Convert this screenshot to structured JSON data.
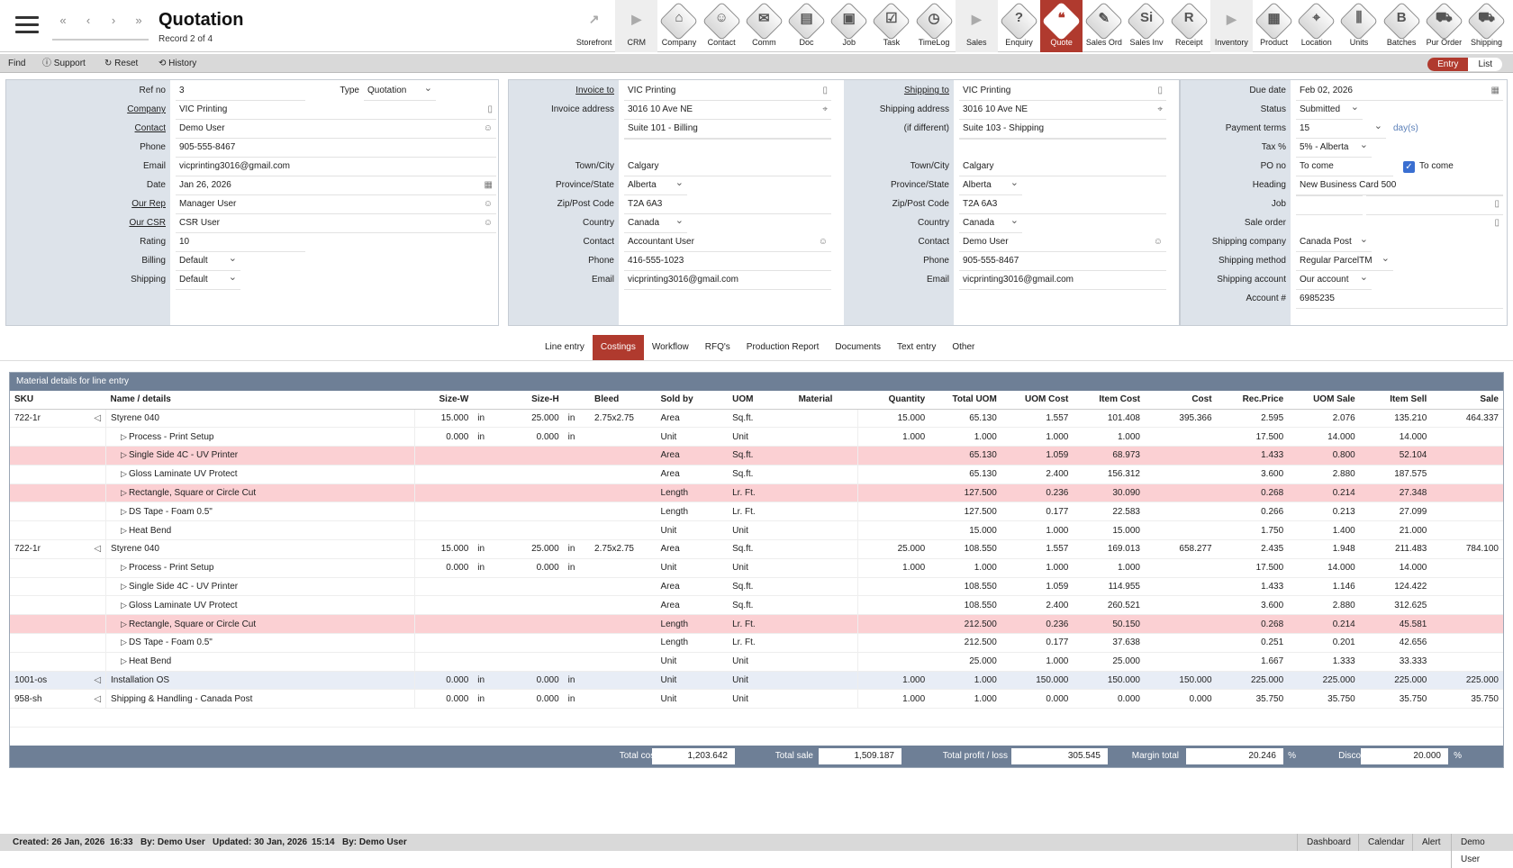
{
  "header": {
    "title": "Quotation",
    "record": "Record 2 of 4",
    "nav": [
      "«",
      "‹",
      "›",
      "»"
    ]
  },
  "modules": [
    {
      "label": "Storefront",
      "glyph": "↗",
      "kind": "plain"
    },
    {
      "label": "CRM",
      "glyph": "▶",
      "kind": "sep"
    },
    {
      "label": "Company",
      "glyph": "⌂",
      "kind": "icon"
    },
    {
      "label": "Contact",
      "glyph": "☺",
      "kind": "icon"
    },
    {
      "label": "Comm",
      "glyph": "✉",
      "kind": "icon"
    },
    {
      "label": "Doc",
      "glyph": "▤",
      "kind": "icon"
    },
    {
      "label": "Job",
      "glyph": "▣",
      "kind": "icon"
    },
    {
      "label": "Task",
      "glyph": "☑",
      "kind": "icon"
    },
    {
      "label": "TimeLog",
      "glyph": "◷",
      "kind": "icon"
    },
    {
      "label": "Sales",
      "glyph": "▶",
      "kind": "sep"
    },
    {
      "label": "Enquiry",
      "glyph": "?",
      "kind": "icon"
    },
    {
      "label": "Quote",
      "glyph": "❝",
      "kind": "active"
    },
    {
      "label": "Sales Ord",
      "glyph": "✎",
      "kind": "icon"
    },
    {
      "label": "Sales Inv",
      "glyph": "Si",
      "kind": "icon"
    },
    {
      "label": "Receipt",
      "glyph": "R",
      "kind": "icon"
    },
    {
      "label": "Inventory",
      "glyph": "▶",
      "kind": "sep"
    },
    {
      "label": "Product",
      "glyph": "▦",
      "kind": "icon"
    },
    {
      "label": "Location",
      "glyph": "⌖",
      "kind": "icon"
    },
    {
      "label": "Units",
      "glyph": "⫼",
      "kind": "icon"
    },
    {
      "label": "Batches",
      "glyph": "B",
      "kind": "icon"
    },
    {
      "label": "Pur Order",
      "glyph": "⛟",
      "kind": "icon"
    },
    {
      "label": "Shipping",
      "glyph": "⛟",
      "kind": "icon"
    }
  ],
  "toolbar": {
    "find": "Find",
    "support": "Support",
    "reset": "Reset",
    "history": "History",
    "entry": "Entry",
    "list": "List"
  },
  "panel1": {
    "ref_no_label": "Ref no",
    "ref_no": "3",
    "type_label": "Type",
    "type": "Quotation",
    "company_label": "Company",
    "company": "VIC Printing",
    "contact_label": "Contact",
    "contact": "Demo User",
    "phone_label": "Phone",
    "phone": "905-555-8467",
    "email_label": "Email",
    "email": "vicprinting3016@gmail.com",
    "date_label": "Date",
    "date": "Jan 26, 2026",
    "rep_label": "Our Rep",
    "rep": "Manager User",
    "csr_label": "Our CSR",
    "csr": "CSR User",
    "rating_label": "Rating",
    "rating": "10",
    "billing_label": "Billing",
    "billing": "Default",
    "shipping_label": "Shipping",
    "shipping": "Default"
  },
  "panel2": {
    "invoice_to_label": "Invoice to",
    "invoice_to": "VIC Printing",
    "addr_label": "Invoice address",
    "addr1": "3016 10 Ave NE",
    "addr2": "Suite 101 - Billing",
    "town_label": "Town/City",
    "town": "Calgary",
    "prov_label": "Province/State",
    "prov": "Alberta",
    "zip_label": "Zip/Post Code",
    "zip": "T2A 6A3",
    "country_label": "Country",
    "country": "Canada",
    "contact_label": "Contact",
    "contact": "Accountant User",
    "phone_label": "Phone",
    "phone": "416-555-1023",
    "email_label": "Email",
    "email": "vicprinting3016@gmail.com",
    "ship_to_label": "Shipping to",
    "ship_to": "VIC Printing",
    "saddr_label": "Shipping address",
    "saddr_label2": "(if different)",
    "saddr1": "3016 10 Ave NE",
    "saddr2": "Suite 103 - Shipping",
    "stown": "Calgary",
    "sprov": "Alberta",
    "szip": "T2A 6A3",
    "scountry": "Canada",
    "scontact": "Demo User",
    "sphone": "905-555-8467",
    "semail": "vicprinting3016@gmail.com"
  },
  "panel3": {
    "due_label": "Due date",
    "due": "Feb 02, 2026",
    "status_label": "Status",
    "status": "Submitted",
    "terms_label": "Payment terms",
    "terms": "15",
    "terms_unit": "day(s)",
    "tax_label": "Tax %",
    "tax": "5% - Alberta",
    "po_label": "PO no",
    "po": "To come",
    "po_check": "To come",
    "heading_label": "Heading",
    "heading": "New Business Card 500",
    "job_label": "Job",
    "job": "",
    "so_label": "Sale order",
    "so": "",
    "shipco_label": "Shipping company",
    "shipco": "Canada Post",
    "shipmethod_label": "Shipping method",
    "shipmethod": "Regular ParcelTM",
    "shipacct_label": "Shipping account",
    "shipacct": "Our account",
    "acct_label": "Account #",
    "acct": "6985235"
  },
  "tabs": [
    "Line entry",
    "Costings",
    "Workflow",
    "RFQ's",
    "Production Report",
    "Documents",
    "Text entry",
    "Other"
  ],
  "grid": {
    "title": "Material details for line entry",
    "columns": [
      "SKU",
      "Name / details",
      "Size-W",
      "",
      "Size-H",
      "",
      "Bleed",
      "Sold by",
      "UOM",
      "Material",
      "Quantity",
      "Total UOM",
      "UOM Cost",
      "Item Cost",
      "Cost",
      "Rec.Price",
      "UOM Sale",
      "Item Sell",
      "Sale"
    ],
    "rows": [
      {
        "style": "main",
        "sku": "722-1r",
        "name": "Styrene 040",
        "w": "15.000",
        "wu": "in",
        "h": "25.000",
        "hu": "in",
        "bleed": "2.75x2.75",
        "sold": "Area",
        "uom": "Sq.ft.",
        "mat": "",
        "qty": "15.000",
        "tuom": "65.130",
        "ucost": "1.557",
        "icost": "101.408",
        "cost": "395.366",
        "rec": "2.595",
        "usale": "2.076",
        "isell": "135.210",
        "sale": "464.337"
      },
      {
        "style": "sub",
        "sku": "",
        "name": "Process - Print Setup",
        "w": "0.000",
        "wu": "in",
        "h": "0.000",
        "hu": "in",
        "bleed": "",
        "sold": "Unit",
        "uom": "Unit",
        "mat": "",
        "qty": "1.000",
        "tuom": "1.000",
        "ucost": "1.000",
        "icost": "1.000",
        "cost": "",
        "rec": "17.500",
        "usale": "14.000",
        "isell": "14.000",
        "sale": ""
      },
      {
        "style": "pink",
        "sku": "",
        "name": "Single Side 4C - UV Printer",
        "w": "",
        "wu": "",
        "h": "",
        "hu": "",
        "bleed": "",
        "sold": "Area",
        "uom": "Sq.ft.",
        "mat": "",
        "qty": "",
        "tuom": "65.130",
        "ucost": "1.059",
        "icost": "68.973",
        "cost": "",
        "rec": "1.433",
        "usale": "0.800",
        "isell": "52.104",
        "sale": ""
      },
      {
        "style": "sub",
        "sku": "",
        "name": "Gloss Laminate UV Protect",
        "w": "",
        "wu": "",
        "h": "",
        "hu": "",
        "bleed": "",
        "sold": "Area",
        "uom": "Sq.ft.",
        "mat": "",
        "qty": "",
        "tuom": "65.130",
        "ucost": "2.400",
        "icost": "156.312",
        "cost": "",
        "rec": "3.600",
        "usale": "2.880",
        "isell": "187.575",
        "sale": ""
      },
      {
        "style": "pink",
        "sku": "",
        "name": "Rectangle, Square or Circle Cut",
        "w": "",
        "wu": "",
        "h": "",
        "hu": "",
        "bleed": "",
        "sold": "Length",
        "uom": "Lr. Ft.",
        "mat": "",
        "qty": "",
        "tuom": "127.500",
        "ucost": "0.236",
        "icost": "30.090",
        "cost": "",
        "rec": "0.268",
        "usale": "0.214",
        "isell": "27.348",
        "sale": ""
      },
      {
        "style": "sub",
        "sku": "",
        "name": "DS Tape - Foam 0.5\"",
        "w": "",
        "wu": "",
        "h": "",
        "hu": "",
        "bleed": "",
        "sold": "Length",
        "uom": "Lr. Ft.",
        "mat": "",
        "qty": "",
        "tuom": "127.500",
        "ucost": "0.177",
        "icost": "22.583",
        "cost": "",
        "rec": "0.266",
        "usale": "0.213",
        "isell": "27.099",
        "sale": ""
      },
      {
        "style": "sub",
        "sku": "",
        "name": "Heat Bend",
        "w": "",
        "wu": "",
        "h": "",
        "hu": "",
        "bleed": "",
        "sold": "Unit",
        "uom": "Unit",
        "mat": "",
        "qty": "",
        "tuom": "15.000",
        "ucost": "1.000",
        "icost": "15.000",
        "cost": "",
        "rec": "1.750",
        "usale": "1.400",
        "isell": "21.000",
        "sale": ""
      },
      {
        "style": "main",
        "sku": "722-1r",
        "name": "Styrene 040",
        "w": "15.000",
        "wu": "in",
        "h": "25.000",
        "hu": "in",
        "bleed": "2.75x2.75",
        "sold": "Area",
        "uom": "Sq.ft.",
        "mat": "",
        "qty": "25.000",
        "tuom": "108.550",
        "ucost": "1.557",
        "icost": "169.013",
        "cost": "658.277",
        "rec": "2.435",
        "usale": "1.948",
        "isell": "211.483",
        "sale": "784.100"
      },
      {
        "style": "sub",
        "sku": "",
        "name": "Process - Print Setup",
        "w": "0.000",
        "wu": "in",
        "h": "0.000",
        "hu": "in",
        "bleed": "",
        "sold": "Unit",
        "uom": "Unit",
        "mat": "",
        "qty": "1.000",
        "tuom": "1.000",
        "ucost": "1.000",
        "icost": "1.000",
        "cost": "",
        "rec": "17.500",
        "usale": "14.000",
        "isell": "14.000",
        "sale": ""
      },
      {
        "style": "sub",
        "sku": "",
        "name": "Single Side 4C - UV Printer",
        "w": "",
        "wu": "",
        "h": "",
        "hu": "",
        "bleed": "",
        "sold": "Area",
        "uom": "Sq.ft.",
        "mat": "",
        "qty": "",
        "tuom": "108.550",
        "ucost": "1.059",
        "icost": "114.955",
        "cost": "",
        "rec": "1.433",
        "usale": "1.146",
        "isell": "124.422",
        "sale": ""
      },
      {
        "style": "sub",
        "sku": "",
        "name": "Gloss Laminate UV Protect",
        "w": "",
        "wu": "",
        "h": "",
        "hu": "",
        "bleed": "",
        "sold": "Area",
        "uom": "Sq.ft.",
        "mat": "",
        "qty": "",
        "tuom": "108.550",
        "ucost": "2.400",
        "icost": "260.521",
        "cost": "",
        "rec": "3.600",
        "usale": "2.880",
        "isell": "312.625",
        "sale": ""
      },
      {
        "style": "pink",
        "sku": "",
        "name": "Rectangle, Square or Circle Cut",
        "w": "",
        "wu": "",
        "h": "",
        "hu": "",
        "bleed": "",
        "sold": "Length",
        "uom": "Lr. Ft.",
        "mat": "",
        "qty": "",
        "tuom": "212.500",
        "ucost": "0.236",
        "icost": "50.150",
        "cost": "",
        "rec": "0.268",
        "usale": "0.214",
        "isell": "45.581",
        "sale": ""
      },
      {
        "style": "sub",
        "sku": "",
        "name": "DS Tape - Foam 0.5\"",
        "w": "",
        "wu": "",
        "h": "",
        "hu": "",
        "bleed": "",
        "sold": "Length",
        "uom": "Lr. Ft.",
        "mat": "",
        "qty": "",
        "tuom": "212.500",
        "ucost": "0.177",
        "icost": "37.638",
        "cost": "",
        "rec": "0.251",
        "usale": "0.201",
        "isell": "42.656",
        "sale": ""
      },
      {
        "style": "sub",
        "sku": "",
        "name": "Heat Bend",
        "w": "",
        "wu": "",
        "h": "",
        "hu": "",
        "bleed": "",
        "sold": "Unit",
        "uom": "Unit",
        "mat": "",
        "qty": "",
        "tuom": "25.000",
        "ucost": "1.000",
        "icost": "25.000",
        "cost": "",
        "rec": "1.667",
        "usale": "1.333",
        "isell": "33.333",
        "sale": ""
      },
      {
        "style": "blue",
        "sku": "1001-os",
        "name": "Installation OS",
        "w": "0.000",
        "wu": "in",
        "h": "0.000",
        "hu": "in",
        "bleed": "",
        "sold": "Unit",
        "uom": "Unit",
        "mat": "",
        "qty": "1.000",
        "tuom": "1.000",
        "ucost": "150.000",
        "icost": "150.000",
        "cost": "150.000",
        "rec": "225.000",
        "usale": "225.000",
        "isell": "225.000",
        "sale": "225.000"
      },
      {
        "style": "main",
        "sku": "958-sh",
        "name": "Shipping & Handling - Canada Post",
        "w": "0.000",
        "wu": "in",
        "h": "0.000",
        "hu": "in",
        "bleed": "",
        "sold": "Unit",
        "uom": "Unit",
        "mat": "",
        "qty": "1.000",
        "tuom": "1.000",
        "ucost": "0.000",
        "icost": "0.000",
        "cost": "0.000",
        "rec": "35.750",
        "usale": "35.750",
        "isell": "35.750",
        "sale": "35.750"
      }
    ]
  },
  "totals": {
    "cost_label": "Total cost",
    "cost": "1,203.642",
    "sale_label": "Total sale",
    "sale": "1,509.187",
    "profit_label": "Total profit / loss",
    "profit": "305.545",
    "margin_label": "Margin total",
    "margin": "20.246",
    "pct": "%",
    "discount_label": "Discount",
    "discount": "20.000"
  },
  "footer": {
    "created_label": "Created:",
    "created": "26 Jan, 2026",
    "created_time": "16:33",
    "by1_label": "By:",
    "by1": "Demo User",
    "updated_label": "Updated:",
    "updated": "30 Jan, 2026",
    "updated_time": "15:14",
    "by2_label": "By:",
    "by2": "Demo User",
    "links": [
      "Dashboard",
      "Calendar",
      "Alert",
      "Demo User"
    ]
  }
}
